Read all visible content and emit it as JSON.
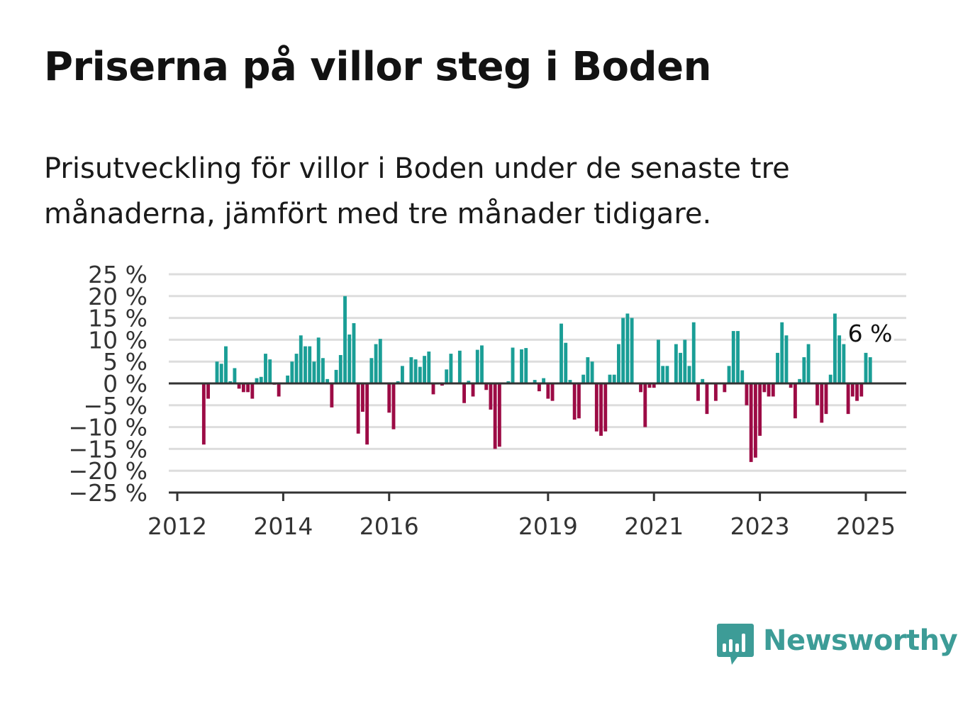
{
  "header": {
    "title": "Priserna på villor steg i Boden",
    "subtitle": "Prisutveckling för villor i Boden under de senaste tre månaderna, jämfört med tre månader tidigare."
  },
  "brand": {
    "name": "Newsworthy",
    "logo_icon": "bar-chart-speech-bubble-icon",
    "color": "#3d9c97"
  },
  "colors": {
    "positive": "#1a9e96",
    "negative": "#9c0b45",
    "grid": "#dddddd",
    "axis": "#333333"
  },
  "chart_data": {
    "type": "bar",
    "title": "Priserna på villor steg i Boden",
    "xlabel": "",
    "ylabel": "",
    "ylim": [
      -25,
      25
    ],
    "y_ticks": [
      25,
      20,
      15,
      10,
      5,
      0,
      -5,
      -10,
      -15,
      -20,
      -25
    ],
    "y_tick_labels": [
      "25 %",
      "20 %",
      "15 %",
      "10 %",
      "5 %",
      "0 %",
      "−5 %",
      "−10 %",
      "−15 %",
      "−20 %",
      "−25 %"
    ],
    "x_ticks": [
      {
        "label": "2012",
        "date": "2012-01"
      },
      {
        "label": "2014",
        "date": "2014-01"
      },
      {
        "label": "2016",
        "date": "2016-01"
      },
      {
        "label": "2019",
        "date": "2019-01"
      },
      {
        "label": "2021",
        "date": "2021-01"
      },
      {
        "label": "2023",
        "date": "2023-01"
      },
      {
        "label": "2025",
        "date": "2025-01"
      }
    ],
    "grid": true,
    "annotation": {
      "text": "6 %",
      "date": "2025-01"
    },
    "values": [
      {
        "date": "2012-07",
        "value": -14
      },
      {
        "date": "2012-08",
        "value": -3.5
      },
      {
        "date": "2012-09",
        "value": 0
      },
      {
        "date": "2012-10",
        "value": 5
      },
      {
        "date": "2012-11",
        "value": 4.5
      },
      {
        "date": "2012-12",
        "value": 8.5
      },
      {
        "date": "2013-01",
        "value": 0.5
      },
      {
        "date": "2013-02",
        "value": 3.5
      },
      {
        "date": "2013-03",
        "value": -1.2
      },
      {
        "date": "2013-04",
        "value": -2
      },
      {
        "date": "2013-05",
        "value": -2
      },
      {
        "date": "2013-06",
        "value": -3.5
      },
      {
        "date": "2013-07",
        "value": 1.2
      },
      {
        "date": "2013-08",
        "value": 1.5
      },
      {
        "date": "2013-09",
        "value": 6.8
      },
      {
        "date": "2013-10",
        "value": 5.5
      },
      {
        "date": "2013-11",
        "value": -0.3
      },
      {
        "date": "2013-12",
        "value": -3
      },
      {
        "date": "2014-01",
        "value": 0
      },
      {
        "date": "2014-02",
        "value": 1.8
      },
      {
        "date": "2014-03",
        "value": 5
      },
      {
        "date": "2014-04",
        "value": 6.8
      },
      {
        "date": "2014-05",
        "value": 11
      },
      {
        "date": "2014-06",
        "value": 8.5
      },
      {
        "date": "2014-07",
        "value": 8.5
      },
      {
        "date": "2014-08",
        "value": 5
      },
      {
        "date": "2014-09",
        "value": 10.5
      },
      {
        "date": "2014-10",
        "value": 5.8
      },
      {
        "date": "2014-11",
        "value": 1
      },
      {
        "date": "2014-12",
        "value": -5.5
      },
      {
        "date": "2015-01",
        "value": 3.1
      },
      {
        "date": "2015-02",
        "value": 6.5
      },
      {
        "date": "2015-03",
        "value": 20
      },
      {
        "date": "2015-04",
        "value": 11.2
      },
      {
        "date": "2015-05",
        "value": 13.8
      },
      {
        "date": "2015-06",
        "value": -11.5
      },
      {
        "date": "2015-07",
        "value": -6.5
      },
      {
        "date": "2015-08",
        "value": -14
      },
      {
        "date": "2015-09",
        "value": 5.8
      },
      {
        "date": "2015-10",
        "value": 9
      },
      {
        "date": "2015-11",
        "value": 10.2
      },
      {
        "date": "2015-12",
        "value": 0
      },
      {
        "date": "2016-01",
        "value": -6.7
      },
      {
        "date": "2016-02",
        "value": -10.5
      },
      {
        "date": "2016-03",
        "value": 0.5
      },
      {
        "date": "2016-04",
        "value": 4
      },
      {
        "date": "2016-05",
        "value": 0
      },
      {
        "date": "2016-06",
        "value": 6
      },
      {
        "date": "2016-07",
        "value": 5.5
      },
      {
        "date": "2016-08",
        "value": 3.8
      },
      {
        "date": "2016-09",
        "value": 6.3
      },
      {
        "date": "2016-10",
        "value": 7.3
      },
      {
        "date": "2016-11",
        "value": -2.5
      },
      {
        "date": "2016-12",
        "value": 0
      },
      {
        "date": "2017-01",
        "value": -0.5
      },
      {
        "date": "2017-02",
        "value": 3.2
      },
      {
        "date": "2017-03",
        "value": 6.8
      },
      {
        "date": "2017-04",
        "value": 0
      },
      {
        "date": "2017-05",
        "value": 7.5
      },
      {
        "date": "2017-06",
        "value": -4.5
      },
      {
        "date": "2017-07",
        "value": 0.6
      },
      {
        "date": "2017-08",
        "value": -3
      },
      {
        "date": "2017-09",
        "value": 7.7
      },
      {
        "date": "2017-10",
        "value": 8.7
      },
      {
        "date": "2017-11",
        "value": -1.5
      },
      {
        "date": "2017-12",
        "value": -6
      },
      {
        "date": "2018-01",
        "value": -15
      },
      {
        "date": "2018-02",
        "value": -14.5
      },
      {
        "date": "2018-03",
        "value": 0
      },
      {
        "date": "2018-04",
        "value": 0.5
      },
      {
        "date": "2018-05",
        "value": 8.2
      },
      {
        "date": "2018-06",
        "value": 0
      },
      {
        "date": "2018-07",
        "value": 7.8
      },
      {
        "date": "2018-08",
        "value": 8.1
      },
      {
        "date": "2018-09",
        "value": 0
      },
      {
        "date": "2018-10",
        "value": 0.8
      },
      {
        "date": "2018-11",
        "value": -1.8
      },
      {
        "date": "2018-12",
        "value": 1.2
      },
      {
        "date": "2019-01",
        "value": -3.5
      },
      {
        "date": "2019-02",
        "value": -4
      },
      {
        "date": "2019-03",
        "value": 0
      },
      {
        "date": "2019-04",
        "value": 13.7
      },
      {
        "date": "2019-05",
        "value": 9.3
      },
      {
        "date": "2019-06",
        "value": 0.8
      },
      {
        "date": "2019-07",
        "value": -8.3
      },
      {
        "date": "2019-08",
        "value": -8
      },
      {
        "date": "2019-09",
        "value": 2
      },
      {
        "date": "2019-10",
        "value": 6
      },
      {
        "date": "2019-11",
        "value": 5
      },
      {
        "date": "2019-12",
        "value": -11
      },
      {
        "date": "2020-01",
        "value": -12
      },
      {
        "date": "2020-02",
        "value": -11
      },
      {
        "date": "2020-03",
        "value": 2
      },
      {
        "date": "2020-04",
        "value": 2
      },
      {
        "date": "2020-05",
        "value": 9
      },
      {
        "date": "2020-06",
        "value": 15
      },
      {
        "date": "2020-07",
        "value": 16
      },
      {
        "date": "2020-08",
        "value": 15
      },
      {
        "date": "2020-09",
        "value": 0
      },
      {
        "date": "2020-10",
        "value": -2
      },
      {
        "date": "2020-11",
        "value": -10
      },
      {
        "date": "2020-12",
        "value": -1
      },
      {
        "date": "2021-01",
        "value": -1
      },
      {
        "date": "2021-02",
        "value": 10
      },
      {
        "date": "2021-03",
        "value": 4
      },
      {
        "date": "2021-04",
        "value": 4
      },
      {
        "date": "2021-05",
        "value": 0
      },
      {
        "date": "2021-06",
        "value": 9
      },
      {
        "date": "2021-07",
        "value": 7
      },
      {
        "date": "2021-08",
        "value": 10
      },
      {
        "date": "2021-09",
        "value": 4
      },
      {
        "date": "2021-10",
        "value": 14
      },
      {
        "date": "2021-11",
        "value": -4
      },
      {
        "date": "2021-12",
        "value": 1
      },
      {
        "date": "2022-01",
        "value": -7
      },
      {
        "date": "2022-02",
        "value": 0
      },
      {
        "date": "2022-03",
        "value": -4
      },
      {
        "date": "2022-04",
        "value": 0
      },
      {
        "date": "2022-05",
        "value": -2
      },
      {
        "date": "2022-06",
        "value": 4
      },
      {
        "date": "2022-07",
        "value": 12
      },
      {
        "date": "2022-08",
        "value": 12
      },
      {
        "date": "2022-09",
        "value": 3
      },
      {
        "date": "2022-10",
        "value": -5
      },
      {
        "date": "2022-11",
        "value": -18
      },
      {
        "date": "2022-12",
        "value": -17
      },
      {
        "date": "2023-01",
        "value": -12
      },
      {
        "date": "2023-02",
        "value": -2
      },
      {
        "date": "2023-03",
        "value": -3
      },
      {
        "date": "2023-04",
        "value": -3
      },
      {
        "date": "2023-05",
        "value": 7
      },
      {
        "date": "2023-06",
        "value": 14
      },
      {
        "date": "2023-07",
        "value": 11
      },
      {
        "date": "2023-08",
        "value": -1
      },
      {
        "date": "2023-09",
        "value": -8
      },
      {
        "date": "2023-10",
        "value": 1
      },
      {
        "date": "2023-11",
        "value": 6
      },
      {
        "date": "2023-12",
        "value": 9
      },
      {
        "date": "2024-01",
        "value": 0
      },
      {
        "date": "2024-02",
        "value": -5
      },
      {
        "date": "2024-03",
        "value": -9
      },
      {
        "date": "2024-04",
        "value": -7
      },
      {
        "date": "2024-05",
        "value": 2
      },
      {
        "date": "2024-06",
        "value": 16
      },
      {
        "date": "2024-07",
        "value": 11
      },
      {
        "date": "2024-08",
        "value": 9
      },
      {
        "date": "2024-09",
        "value": -7
      },
      {
        "date": "2024-10",
        "value": -3
      },
      {
        "date": "2024-11",
        "value": -4
      },
      {
        "date": "2024-12",
        "value": -3
      },
      {
        "date": "2025-01",
        "value": 7
      },
      {
        "date": "2025-02",
        "value": 6
      }
    ]
  }
}
